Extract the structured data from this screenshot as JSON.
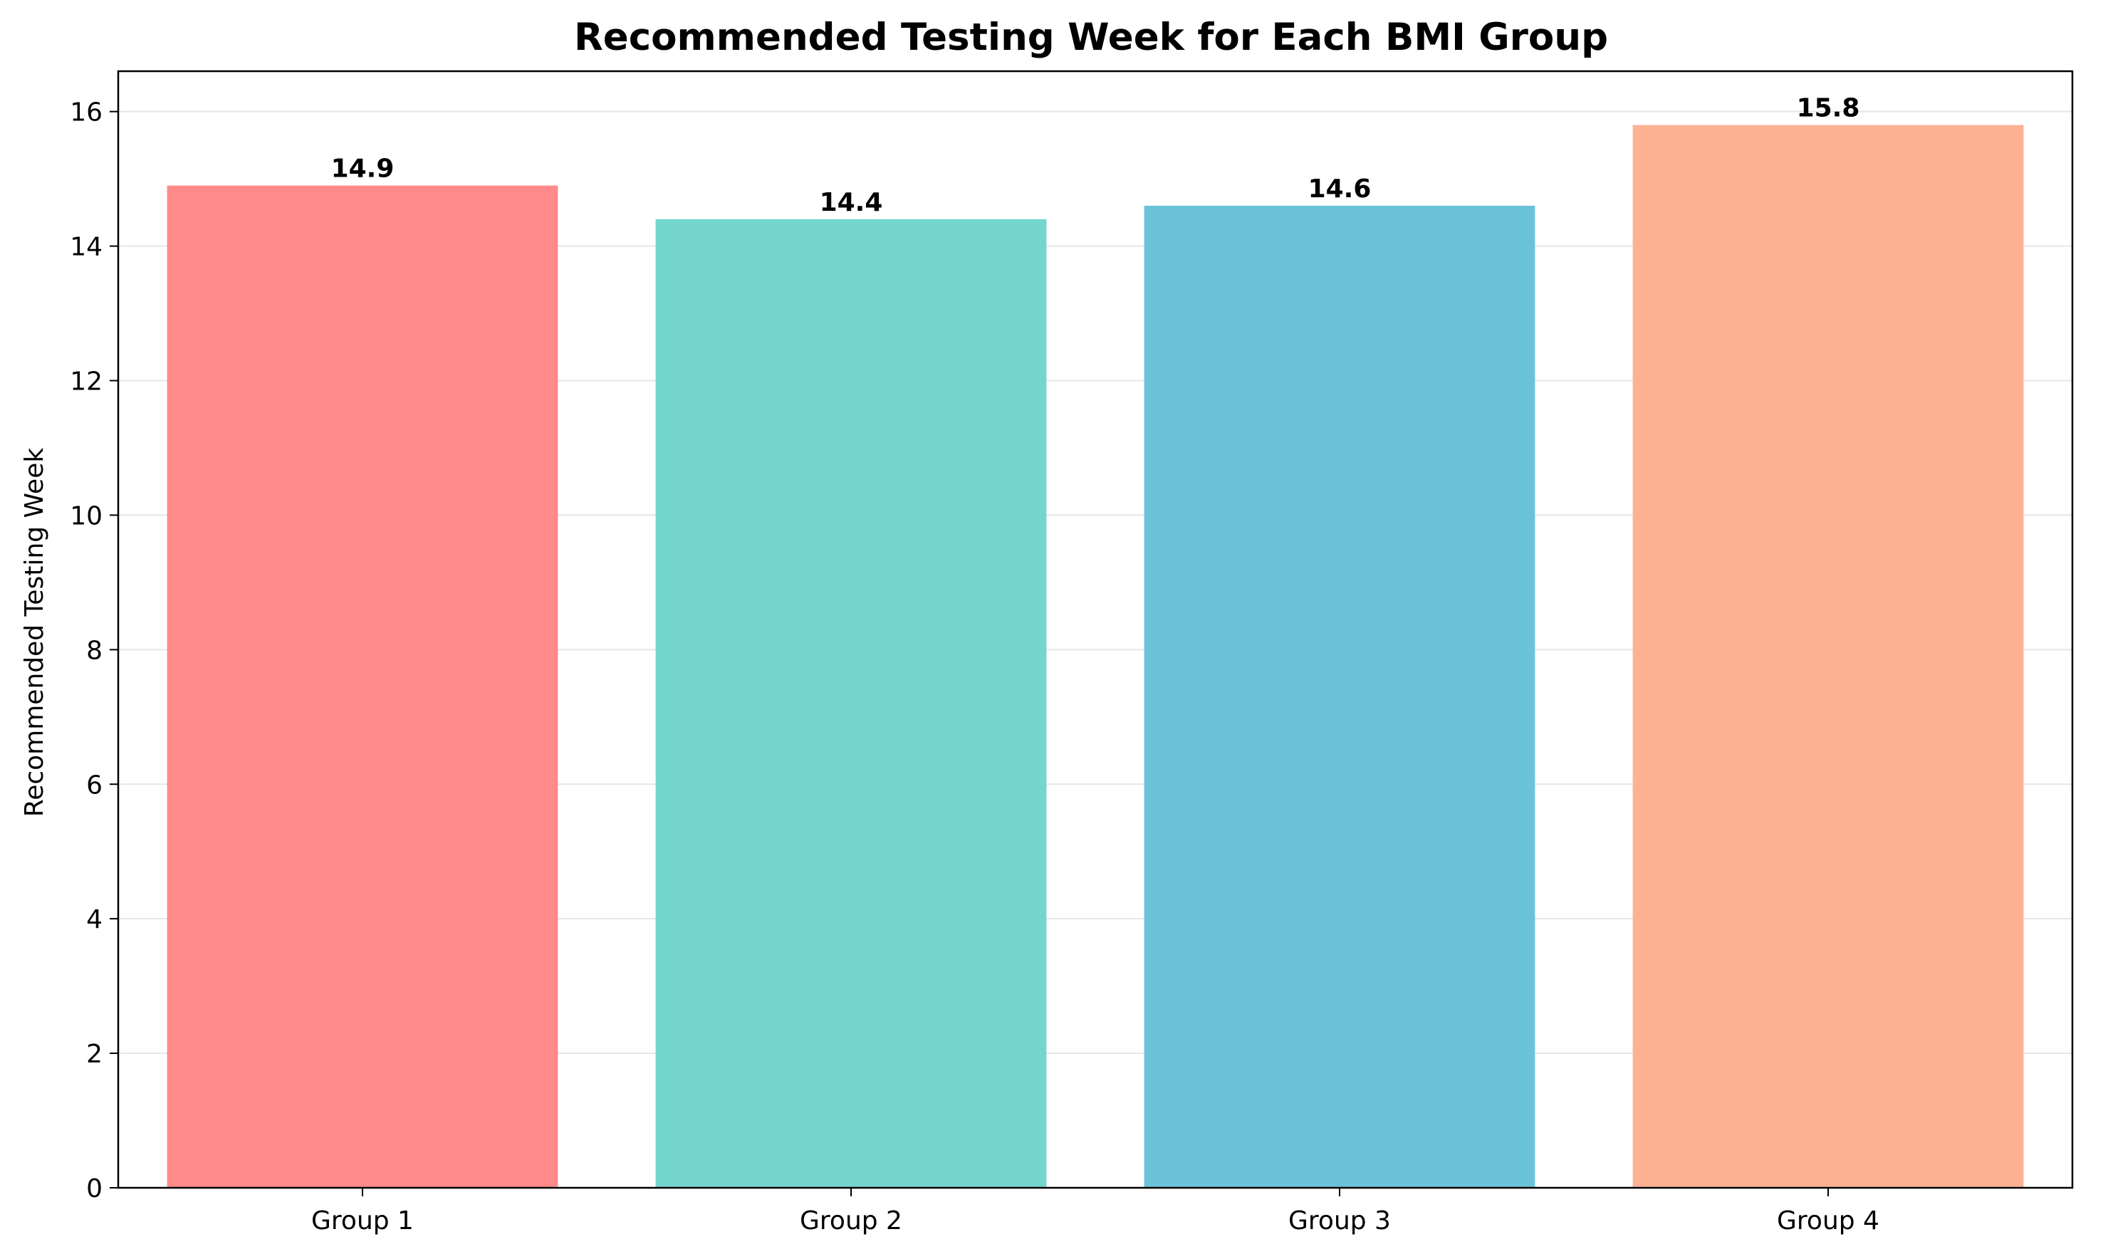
{
  "chart_data": {
    "type": "bar",
    "title": "Recommended Testing Week for Each BMI Group",
    "xlabel": "",
    "ylabel": "Recommended Testing Week",
    "categories": [
      "Group 1",
      "Group 2",
      "Group 3",
      "Group 4"
    ],
    "values": [
      14.9,
      14.4,
      14.6,
      15.8
    ],
    "value_labels": [
      "14.9",
      "14.4",
      "14.6",
      "15.8"
    ],
    "colors": [
      "#ff8a8a",
      "#74d6cf",
      "#6bc3d9",
      "#ffb194"
    ],
    "ylim": [
      0,
      16.6
    ],
    "yticks": [
      0,
      2,
      4,
      6,
      8,
      10,
      12,
      14,
      16
    ],
    "ytick_labels": [
      "0",
      "2",
      "4",
      "6",
      "8",
      "10",
      "12",
      "14",
      "16"
    ],
    "grid": "horizontal",
    "grid_color": "#e6e6e6",
    "legend": "none"
  }
}
